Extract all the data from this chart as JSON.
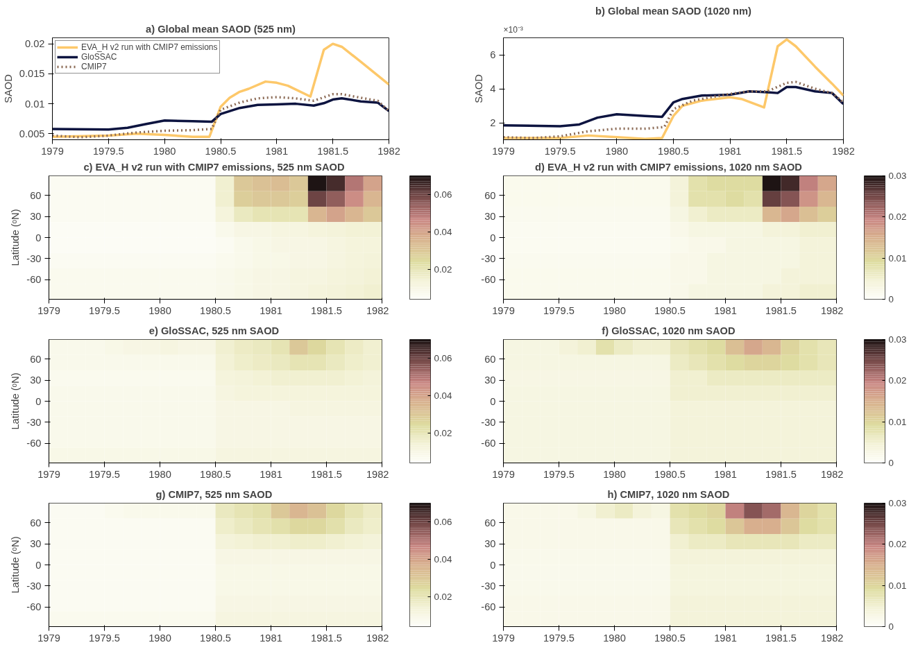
{
  "chart_data": [
    {
      "type": "line",
      "title": "a) Global mean SAOD (525 nm)",
      "ylabel": "SAOD",
      "xlim": [
        1979,
        1982
      ],
      "xticks": [
        1979,
        1979.5,
        1980,
        1980.5,
        1981,
        1981.5,
        1982
      ],
      "ylim": [
        0.004,
        0.021
      ],
      "yticks": [
        0.005,
        0.01,
        0.015,
        0.02
      ],
      "legend": "top left",
      "series": [
        {
          "name": "EVA_H v2 run with CMIP7 emissions",
          "color": "#fdc86a",
          "x": [
            1979,
            1979.5,
            1979.75,
            1980,
            1980.25,
            1980.4,
            1980.5,
            1980.58,
            1980.67,
            1980.75,
            1980.9,
            1981,
            1981.1,
            1981.3,
            1981.42,
            1981.5,
            1981.58,
            1981.75,
            1982
          ],
          "values": [
            0.0045,
            0.0047,
            0.005,
            0.0048,
            0.0045,
            0.0045,
            0.0095,
            0.011,
            0.012,
            0.0125,
            0.0137,
            0.0135,
            0.013,
            0.0112,
            0.019,
            0.02,
            0.0195,
            0.017,
            0.0132
          ]
        },
        {
          "name": "GloSSAC",
          "color": "#0d1440",
          "x": [
            1979,
            1979.5,
            1979.67,
            1979.83,
            1980,
            1980.25,
            1980.42,
            1980.5,
            1980.67,
            1980.83,
            1981,
            1981.17,
            1981.33,
            1981.42,
            1981.5,
            1981.58,
            1981.75,
            1981.9,
            1982
          ],
          "values": [
            0.0058,
            0.0057,
            0.006,
            0.0066,
            0.0072,
            0.0071,
            0.007,
            0.0083,
            0.0093,
            0.0098,
            0.0099,
            0.01,
            0.0097,
            0.0101,
            0.0107,
            0.0109,
            0.0104,
            0.0102,
            0.0088
          ]
        },
        {
          "name": "CMIP7",
          "color": "#8b6a55",
          "line_style": "dotted",
          "x": [
            1979,
            1979.25,
            1979.5,
            1979.75,
            1980,
            1980.25,
            1980.42,
            1980.5,
            1980.67,
            1980.83,
            1981,
            1981.17,
            1981.33,
            1981.5,
            1981.58,
            1981.75,
            1981.9,
            1982
          ],
          "values": [
            0.0047,
            0.0044,
            0.0047,
            0.0052,
            0.0055,
            0.0056,
            0.0058,
            0.009,
            0.0102,
            0.0109,
            0.0111,
            0.0109,
            0.0105,
            0.0116,
            0.0116,
            0.011,
            0.0105,
            0.0088
          ]
        }
      ]
    },
    {
      "type": "line",
      "title": "b) Global mean SAOD (1020 nm)",
      "ylabel": "SAOD",
      "annotations": [
        "×10⁻³"
      ],
      "xlim": [
        1979,
        1982
      ],
      "xticks": [
        1979,
        1979.5,
        1980,
        1980.5,
        1981,
        1981.5,
        1982
      ],
      "ylim": [
        1,
        7
      ],
      "yticks": [
        2,
        4,
        6
      ],
      "series": [
        {
          "color": "#fdc86a",
          "x": [
            1979,
            1979.5,
            1979.75,
            1980,
            1980.25,
            1980.4,
            1980.5,
            1980.58,
            1980.75,
            1981,
            1981.1,
            1981.3,
            1981.42,
            1981.5,
            1981.58,
            1981.75,
            1981.9,
            1982
          ],
          "values": [
            1.1,
            1.1,
            1.25,
            1.15,
            1.05,
            1.1,
            2.4,
            3.0,
            3.3,
            3.5,
            3.4,
            2.9,
            6.5,
            6.9,
            6.5,
            5.3,
            4.3,
            3.6
          ]
        },
        {
          "color": "#0d1440",
          "x": [
            1979,
            1979.5,
            1979.67,
            1979.83,
            1980,
            1980.25,
            1980.4,
            1980.5,
            1980.58,
            1980.75,
            1981,
            1981.17,
            1981.33,
            1981.42,
            1981.5,
            1981.58,
            1981.75,
            1981.9,
            1982
          ],
          "values": [
            1.85,
            1.8,
            1.9,
            2.3,
            2.5,
            2.4,
            2.35,
            3.2,
            3.4,
            3.6,
            3.65,
            3.85,
            3.8,
            3.75,
            4.1,
            4.1,
            3.85,
            3.75,
            3.1
          ]
        },
        {
          "color": "#8b6a55",
          "line_style": "dotted",
          "x": [
            1979,
            1979.25,
            1979.5,
            1979.75,
            1980,
            1980.25,
            1980.42,
            1980.5,
            1980.67,
            1980.83,
            1981,
            1981.17,
            1981.33,
            1981.5,
            1981.58,
            1981.75,
            1981.9,
            1982
          ],
          "values": [
            1.15,
            1.1,
            1.2,
            1.5,
            1.65,
            1.65,
            1.75,
            2.8,
            3.3,
            3.5,
            3.7,
            3.85,
            3.85,
            4.35,
            4.4,
            4.0,
            3.75,
            3.2
          ]
        }
      ]
    },
    {
      "type": "heatmap",
      "title": "c) EVA_H v2 run with CMIP7 emissions,  525 nm SAOD",
      "ylabel": "Latitude (ᵒN)",
      "xlim": [
        1979,
        1982
      ],
      "xticks": [
        1979,
        1979.5,
        1980,
        1980.5,
        1981,
        1981.5,
        1982
      ],
      "ylim": [
        -88,
        88
      ],
      "yticks": [
        -60,
        -30,
        0,
        30,
        60
      ],
      "clim": [
        0.004,
        0.07
      ],
      "cticks": [
        0.02,
        0.04,
        0.06
      ],
      "cells": [
        [
          0.006,
          0.006,
          0.006,
          0.006,
          0.006,
          0.006,
          0.006,
          0.006,
          0.006,
          0.015,
          0.03,
          0.032,
          0.033,
          0.03,
          0.07,
          0.065,
          0.05,
          0.04
        ],
        [
          0.006,
          0.006,
          0.006,
          0.006,
          0.006,
          0.006,
          0.006,
          0.006,
          0.006,
          0.015,
          0.028,
          0.03,
          0.03,
          0.028,
          0.06,
          0.055,
          0.045,
          0.035
        ],
        [
          0.006,
          0.006,
          0.006,
          0.006,
          0.006,
          0.006,
          0.006,
          0.006,
          0.006,
          0.012,
          0.018,
          0.02,
          0.02,
          0.02,
          0.035,
          0.04,
          0.035,
          0.03
        ],
        [
          0.005,
          0.005,
          0.005,
          0.005,
          0.005,
          0.005,
          0.005,
          0.005,
          0.005,
          0.008,
          0.01,
          0.01,
          0.011,
          0.011,
          0.012,
          0.013,
          0.014,
          0.014
        ],
        [
          0.005,
          0.005,
          0.005,
          0.005,
          0.005,
          0.005,
          0.005,
          0.005,
          0.005,
          0.006,
          0.008,
          0.009,
          0.01,
          0.01,
          0.01,
          0.011,
          0.012,
          0.012
        ],
        [
          0.006,
          0.006,
          0.006,
          0.006,
          0.006,
          0.006,
          0.006,
          0.006,
          0.006,
          0.007,
          0.008,
          0.009,
          0.009,
          0.01,
          0.01,
          0.011,
          0.012,
          0.013
        ],
        [
          0.007,
          0.007,
          0.007,
          0.007,
          0.007,
          0.007,
          0.007,
          0.007,
          0.007,
          0.008,
          0.009,
          0.01,
          0.01,
          0.011,
          0.011,
          0.012,
          0.013,
          0.014
        ],
        [
          0.007,
          0.007,
          0.007,
          0.007,
          0.007,
          0.007,
          0.007,
          0.007,
          0.007,
          0.008,
          0.009,
          0.01,
          0.01,
          0.011,
          0.012,
          0.013,
          0.014,
          0.015
        ]
      ]
    },
    {
      "type": "heatmap",
      "title": "d) EVA_H v2 run with CMIP7 emissions,  1020 nm SAOD",
      "xlim": [
        1979,
        1982
      ],
      "xticks": [
        1979,
        1979.5,
        1980,
        1980.5,
        1981,
        1981.5,
        1982
      ],
      "ylim": [
        -88,
        88
      ],
      "yticks": [
        -60,
        -30,
        0,
        30,
        60
      ],
      "clim": [
        0,
        0.03
      ],
      "cticks": [
        0,
        0.01,
        0.02,
        0.03
      ],
      "cells": [
        [
          0.0015,
          0.0015,
          0.0015,
          0.0015,
          0.0015,
          0.0015,
          0.0015,
          0.0015,
          0.0015,
          0.004,
          0.008,
          0.009,
          0.009,
          0.009,
          0.03,
          0.028,
          0.02,
          0.016
        ],
        [
          0.0015,
          0.0015,
          0.0015,
          0.0015,
          0.0015,
          0.0015,
          0.0015,
          0.0015,
          0.0015,
          0.004,
          0.008,
          0.008,
          0.009,
          0.008,
          0.026,
          0.024,
          0.018,
          0.014
        ],
        [
          0.0012,
          0.0012,
          0.0012,
          0.0012,
          0.0012,
          0.0012,
          0.0012,
          0.0012,
          0.0012,
          0.003,
          0.005,
          0.006,
          0.006,
          0.006,
          0.014,
          0.016,
          0.013,
          0.011
        ],
        [
          0.001,
          0.001,
          0.001,
          0.001,
          0.001,
          0.001,
          0.001,
          0.001,
          0.001,
          0.002,
          0.003,
          0.003,
          0.003,
          0.003,
          0.004,
          0.004,
          0.005,
          0.005
        ],
        [
          0.001,
          0.001,
          0.001,
          0.001,
          0.001,
          0.001,
          0.001,
          0.001,
          0.001,
          0.0015,
          0.002,
          0.002,
          0.003,
          0.003,
          0.003,
          0.003,
          0.004,
          0.004
        ],
        [
          0.0012,
          0.0012,
          0.0012,
          0.0012,
          0.0012,
          0.0012,
          0.0012,
          0.0012,
          0.0012,
          0.002,
          0.002,
          0.003,
          0.003,
          0.003,
          0.003,
          0.003,
          0.004,
          0.004
        ],
        [
          0.0015,
          0.0015,
          0.0015,
          0.0015,
          0.0015,
          0.0015,
          0.0015,
          0.0015,
          0.0015,
          0.002,
          0.002,
          0.003,
          0.003,
          0.003,
          0.003,
          0.004,
          0.004,
          0.004
        ],
        [
          0.0015,
          0.0015,
          0.0015,
          0.0015,
          0.0015,
          0.0015,
          0.0015,
          0.0015,
          0.0015,
          0.002,
          0.003,
          0.003,
          0.003,
          0.003,
          0.004,
          0.004,
          0.005,
          0.005
        ]
      ]
    },
    {
      "type": "heatmap",
      "title": "e) GloSSAC,  525 nm SAOD",
      "ylabel": "Latitude (ᵒN)",
      "xlim": [
        1979,
        1982
      ],
      "xticks": [
        1979,
        1979.5,
        1980,
        1980.5,
        1981,
        1981.5,
        1982
      ],
      "ylim": [
        -88,
        88
      ],
      "yticks": [
        -60,
        -30,
        0,
        30,
        60
      ],
      "clim": [
        0.004,
        0.07
      ],
      "cticks": [
        0.02,
        0.04,
        0.06
      ],
      "cells": [
        [
          0.008,
          0.008,
          0.008,
          0.009,
          0.01,
          0.01,
          0.011,
          0.01,
          0.01,
          0.015,
          0.017,
          0.018,
          0.02,
          0.03,
          0.025,
          0.02,
          0.017,
          0.015
        ],
        [
          0.008,
          0.008,
          0.008,
          0.008,
          0.008,
          0.008,
          0.008,
          0.008,
          0.008,
          0.014,
          0.016,
          0.017,
          0.018,
          0.02,
          0.02,
          0.018,
          0.016,
          0.015
        ],
        [
          0.007,
          0.007,
          0.007,
          0.007,
          0.007,
          0.007,
          0.007,
          0.007,
          0.007,
          0.012,
          0.013,
          0.014,
          0.015,
          0.015,
          0.015,
          0.015,
          0.014,
          0.013
        ],
        [
          0.008,
          0.008,
          0.008,
          0.008,
          0.008,
          0.008,
          0.008,
          0.008,
          0.008,
          0.011,
          0.012,
          0.012,
          0.012,
          0.012,
          0.012,
          0.012,
          0.012,
          0.012
        ],
        [
          0.008,
          0.008,
          0.008,
          0.008,
          0.008,
          0.008,
          0.008,
          0.008,
          0.008,
          0.01,
          0.01,
          0.01,
          0.01,
          0.011,
          0.011,
          0.011,
          0.011,
          0.011
        ],
        [
          0.008,
          0.008,
          0.008,
          0.008,
          0.008,
          0.008,
          0.008,
          0.008,
          0.008,
          0.01,
          0.01,
          0.01,
          0.01,
          0.01,
          0.01,
          0.01,
          0.01,
          0.01
        ],
        [
          0.008,
          0.008,
          0.008,
          0.008,
          0.008,
          0.008,
          0.008,
          0.008,
          0.008,
          0.01,
          0.01,
          0.01,
          0.01,
          0.01,
          0.01,
          0.01,
          0.01,
          0.01
        ],
        [
          0.009,
          0.009,
          0.009,
          0.009,
          0.009,
          0.009,
          0.009,
          0.009,
          0.009,
          0.011,
          0.011,
          0.011,
          0.011,
          0.011,
          0.011,
          0.011,
          0.011,
          0.011
        ]
      ]
    },
    {
      "type": "heatmap",
      "title": "f) GloSSAC,  1020 nm SAOD",
      "xlim": [
        1979,
        1982
      ],
      "xticks": [
        1979,
        1979.5,
        1980,
        1980.5,
        1981,
        1981.5,
        1982
      ],
      "ylim": [
        -88,
        88
      ],
      "yticks": [
        -60,
        -30,
        0,
        30,
        60
      ],
      "clim": [
        0,
        0.03
      ],
      "cticks": [
        0,
        0.01,
        0.02,
        0.03
      ],
      "cells": [
        [
          0.003,
          0.003,
          0.003,
          0.004,
          0.005,
          0.008,
          0.006,
          0.005,
          0.005,
          0.007,
          0.008,
          0.009,
          0.013,
          0.016,
          0.014,
          0.01,
          0.008,
          0.007
        ],
        [
          0.003,
          0.003,
          0.003,
          0.003,
          0.003,
          0.003,
          0.003,
          0.003,
          0.003,
          0.006,
          0.007,
          0.008,
          0.009,
          0.01,
          0.01,
          0.009,
          0.008,
          0.007
        ],
        [
          0.0028,
          0.0028,
          0.0028,
          0.0028,
          0.0028,
          0.0028,
          0.0028,
          0.0028,
          0.0028,
          0.005,
          0.005,
          0.006,
          0.006,
          0.006,
          0.006,
          0.006,
          0.006,
          0.006
        ],
        [
          0.003,
          0.003,
          0.003,
          0.003,
          0.003,
          0.003,
          0.003,
          0.003,
          0.003,
          0.005,
          0.005,
          0.005,
          0.005,
          0.005,
          0.005,
          0.005,
          0.005,
          0.005
        ],
        [
          0.003,
          0.003,
          0.003,
          0.003,
          0.003,
          0.003,
          0.003,
          0.003,
          0.003,
          0.004,
          0.004,
          0.004,
          0.004,
          0.004,
          0.004,
          0.004,
          0.004,
          0.004
        ],
        [
          0.003,
          0.003,
          0.003,
          0.003,
          0.003,
          0.003,
          0.003,
          0.003,
          0.003,
          0.004,
          0.004,
          0.004,
          0.004,
          0.004,
          0.004,
          0.004,
          0.004,
          0.004
        ],
        [
          0.003,
          0.003,
          0.003,
          0.003,
          0.003,
          0.003,
          0.003,
          0.003,
          0.003,
          0.004,
          0.004,
          0.004,
          0.004,
          0.004,
          0.004,
          0.004,
          0.004,
          0.004
        ],
        [
          0.003,
          0.003,
          0.003,
          0.003,
          0.003,
          0.003,
          0.003,
          0.003,
          0.003,
          0.004,
          0.004,
          0.004,
          0.004,
          0.004,
          0.004,
          0.004,
          0.004,
          0.004
        ]
      ]
    },
    {
      "type": "heatmap",
      "title": "g) CMIP7,  525 nm SAOD",
      "ylabel": "Latitude (ᵒN)",
      "xlim": [
        1979,
        1982
      ],
      "xticks": [
        1979,
        1979.5,
        1980,
        1980.5,
        1981,
        1981.5,
        1982
      ],
      "ylim": [
        -88,
        88
      ],
      "yticks": [
        -60,
        -30,
        0,
        30,
        60
      ],
      "clim": [
        0.004,
        0.07
      ],
      "cticks": [
        0.02,
        0.04,
        0.06
      ],
      "cells": [
        [
          0.006,
          0.006,
          0.006,
          0.007,
          0.008,
          0.008,
          0.008,
          0.008,
          0.008,
          0.018,
          0.02,
          0.022,
          0.03,
          0.035,
          0.032,
          0.025,
          0.02,
          0.017
        ],
        [
          0.006,
          0.006,
          0.006,
          0.006,
          0.006,
          0.006,
          0.006,
          0.006,
          0.006,
          0.016,
          0.018,
          0.02,
          0.022,
          0.025,
          0.025,
          0.022,
          0.018,
          0.016
        ],
        [
          0.006,
          0.006,
          0.006,
          0.006,
          0.006,
          0.006,
          0.006,
          0.006,
          0.006,
          0.013,
          0.014,
          0.015,
          0.015,
          0.016,
          0.016,
          0.015,
          0.014,
          0.013
        ],
        [
          0.006,
          0.006,
          0.006,
          0.006,
          0.006,
          0.006,
          0.006,
          0.006,
          0.006,
          0.01,
          0.01,
          0.01,
          0.01,
          0.01,
          0.01,
          0.01,
          0.01,
          0.01
        ],
        [
          0.006,
          0.006,
          0.006,
          0.006,
          0.006,
          0.006,
          0.006,
          0.006,
          0.006,
          0.009,
          0.009,
          0.009,
          0.009,
          0.009,
          0.009,
          0.009,
          0.009,
          0.009
        ],
        [
          0.006,
          0.006,
          0.006,
          0.006,
          0.006,
          0.006,
          0.006,
          0.006,
          0.006,
          0.009,
          0.009,
          0.009,
          0.009,
          0.009,
          0.009,
          0.009,
          0.009,
          0.009
        ],
        [
          0.006,
          0.006,
          0.006,
          0.006,
          0.006,
          0.006,
          0.006,
          0.006,
          0.006,
          0.01,
          0.01,
          0.01,
          0.01,
          0.01,
          0.01,
          0.01,
          0.01,
          0.01
        ],
        [
          0.007,
          0.007,
          0.007,
          0.007,
          0.007,
          0.007,
          0.007,
          0.007,
          0.007,
          0.011,
          0.011,
          0.011,
          0.011,
          0.011,
          0.011,
          0.011,
          0.011,
          0.011
        ]
      ]
    },
    {
      "type": "heatmap",
      "title": "h) CMIP7,  1020 nm SAOD",
      "xlim": [
        1979,
        1982
      ],
      "xticks": [
        1979,
        1979.5,
        1980,
        1980.5,
        1981,
        1981.5,
        1982
      ],
      "ylim": [
        -88,
        88
      ],
      "yticks": [
        -60,
        -30,
        0,
        30,
        60
      ],
      "clim": [
        0,
        0.03
      ],
      "cticks": [
        0,
        0.01,
        0.02,
        0.03
      ],
      "cells": [
        [
          0.002,
          0.002,
          0.002,
          0.002,
          0.003,
          0.005,
          0.006,
          0.004,
          0.003,
          0.008,
          0.009,
          0.01,
          0.02,
          0.024,
          0.022,
          0.014,
          0.01,
          0.008
        ],
        [
          0.002,
          0.002,
          0.002,
          0.002,
          0.002,
          0.002,
          0.002,
          0.002,
          0.002,
          0.007,
          0.008,
          0.009,
          0.012,
          0.015,
          0.015,
          0.012,
          0.009,
          0.008
        ],
        [
          0.002,
          0.002,
          0.002,
          0.002,
          0.002,
          0.002,
          0.002,
          0.002,
          0.002,
          0.005,
          0.006,
          0.006,
          0.007,
          0.007,
          0.007,
          0.007,
          0.006,
          0.006
        ],
        [
          0.0018,
          0.0018,
          0.0018,
          0.0018,
          0.0018,
          0.0018,
          0.0018,
          0.0018,
          0.0018,
          0.004,
          0.004,
          0.004,
          0.004,
          0.004,
          0.004,
          0.004,
          0.004,
          0.004
        ],
        [
          0.0017,
          0.0017,
          0.0017,
          0.0017,
          0.0017,
          0.0017,
          0.0017,
          0.0017,
          0.0017,
          0.0035,
          0.0035,
          0.0035,
          0.0035,
          0.0035,
          0.0035,
          0.0035,
          0.0035,
          0.0035
        ],
        [
          0.0018,
          0.0018,
          0.0018,
          0.0018,
          0.0018,
          0.0018,
          0.0018,
          0.0018,
          0.0018,
          0.0035,
          0.0035,
          0.0035,
          0.0035,
          0.0035,
          0.0035,
          0.0035,
          0.0035,
          0.0035
        ],
        [
          0.002,
          0.002,
          0.002,
          0.002,
          0.002,
          0.002,
          0.002,
          0.002,
          0.002,
          0.004,
          0.004,
          0.004,
          0.004,
          0.004,
          0.004,
          0.004,
          0.004,
          0.004
        ],
        [
          0.002,
          0.002,
          0.002,
          0.002,
          0.002,
          0.002,
          0.002,
          0.002,
          0.002,
          0.004,
          0.004,
          0.004,
          0.004,
          0.004,
          0.004,
          0.004,
          0.004,
          0.004
        ]
      ]
    }
  ]
}
